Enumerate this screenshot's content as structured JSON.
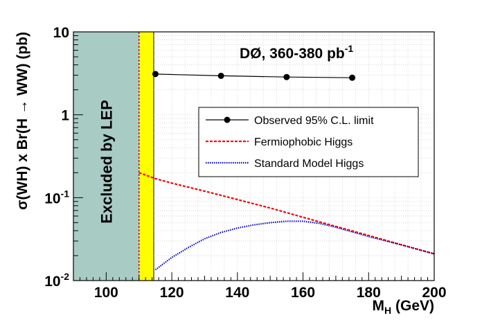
{
  "chart_data": {
    "type": "line",
    "title": "DØ, 360-380 pb",
    "title_superscript": "-1",
    "xlabel": "M",
    "xlabel_subscript": "H",
    "xlabel_unit": " (GeV)",
    "ylabel": "σ(WH) x Br(H → WW) (pb)",
    "xlim": [
      90,
      200
    ],
    "ylim": [
      0.01,
      10
    ],
    "yscale": "log",
    "grid": true,
    "legend_position": "center-right",
    "x_ticks": [
      "100",
      "120",
      "140",
      "160",
      "180",
      "200"
    ],
    "x_tick_values": [
      100,
      120,
      140,
      160,
      180,
      200
    ],
    "y_ticks": [
      {
        "value": 10,
        "base": "10",
        "exp": ""
      },
      {
        "value": 1,
        "base": "1",
        "exp": ""
      },
      {
        "value": 0.1,
        "base": "10",
        "exp": "-1"
      },
      {
        "value": 0.01,
        "base": "10",
        "exp": "-2"
      }
    ],
    "excluded_region": {
      "label": "Excluded by LEP",
      "x_range": [
        90,
        110
      ],
      "color": "#a8ccc4"
    },
    "band": {
      "x_range": [
        110,
        114.5
      ],
      "fill": "#ffff00",
      "edge": "#cc0000"
    },
    "series": [
      {
        "name": "Observed 95% C.L. limit",
        "style": "solid-markers",
        "color": "#000000",
        "x": [
          115,
          135,
          155,
          175
        ],
        "y": [
          3.1,
          2.95,
          2.85,
          2.8
        ]
      },
      {
        "name": "Fermiophobic Higgs",
        "style": "dashed",
        "color": "#ff0000",
        "x": [
          110,
          115,
          120,
          130,
          140,
          150,
          160,
          170,
          180,
          190,
          200
        ],
        "y": [
          0.2,
          0.17,
          0.15,
          0.12,
          0.095,
          0.075,
          0.058,
          0.045,
          0.035,
          0.027,
          0.021
        ]
      },
      {
        "name": "Standard Model Higgs",
        "style": "dotted",
        "color": "#0000cc",
        "x": [
          115,
          120,
          125,
          130,
          135,
          140,
          145,
          150,
          155,
          160,
          165,
          170,
          180,
          190,
          200
        ],
        "y": [
          0.0135,
          0.019,
          0.025,
          0.032,
          0.038,
          0.043,
          0.047,
          0.05,
          0.052,
          0.052,
          0.049,
          0.044,
          0.034,
          0.027,
          0.021
        ]
      }
    ]
  }
}
